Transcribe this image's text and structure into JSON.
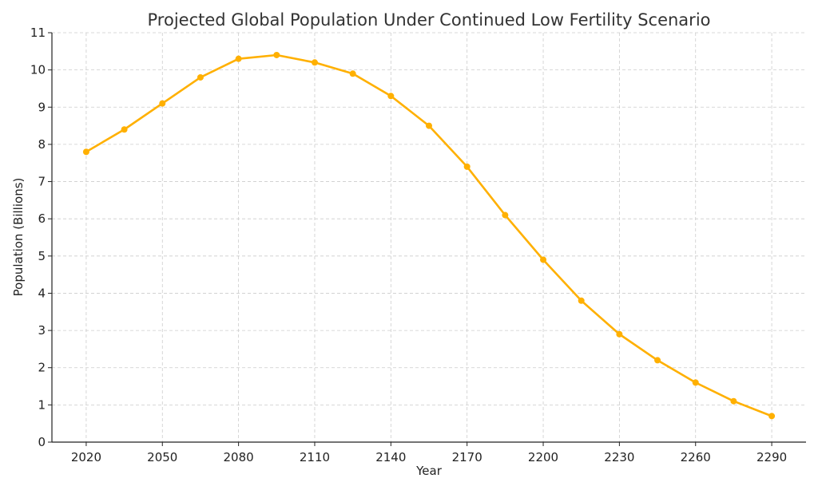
{
  "chart_data": {
    "type": "line",
    "title": "Projected Global Population Under Continued Low Fertility Scenario",
    "xlabel": "Year",
    "ylabel": "Population (Billions)",
    "x": [
      2020,
      2035,
      2050,
      2065,
      2080,
      2095,
      2110,
      2125,
      2140,
      2155,
      2170,
      2185,
      2200,
      2215,
      2230,
      2245,
      2260,
      2275,
      2290
    ],
    "series": [
      {
        "values": [
          7.8,
          8.4,
          9.1,
          9.8,
          10.3,
          10.4,
          10.2,
          9.9,
          9.3,
          8.5,
          7.4,
          6.1,
          4.9,
          3.8,
          2.9,
          2.2,
          1.6,
          1.1,
          0.7
        ],
        "color": "#FFB000"
      }
    ],
    "xticks": [
      2020,
      2050,
      2080,
      2110,
      2140,
      2170,
      2200,
      2230,
      2260,
      2290
    ],
    "yticks": [
      0,
      1,
      2,
      3,
      4,
      5,
      6,
      7,
      8,
      9,
      10,
      11
    ],
    "xlim": [
      2006.5,
      2303.5
    ],
    "ylim": [
      0,
      11
    ],
    "grid": true,
    "marker": "circle"
  }
}
